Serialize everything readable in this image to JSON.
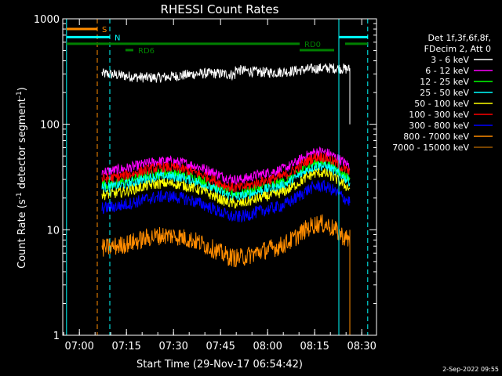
{
  "chart_data": {
    "type": "line",
    "title": "RHESSI Count Rates",
    "xlabel": "Start Time (29-Nov-17 06:54:42)",
    "ylabel_parts": [
      "Count Rate (s",
      "-1",
      " detector segment",
      "-1",
      ")"
    ],
    "yscale": "log",
    "ylim": [
      1,
      1000
    ],
    "xlim_minutes": [
      0,
      100
    ],
    "y_ticks": [
      {
        "value": 1,
        "label": "1"
      },
      {
        "value": 10,
        "label": "10"
      },
      {
        "value": 100,
        "label": "100"
      },
      {
        "value": 1000,
        "label": "1000"
      }
    ],
    "x_ticks": [
      {
        "minute": 5.3,
        "label": "07:00"
      },
      {
        "minute": 20.3,
        "label": "07:15"
      },
      {
        "minute": 35.3,
        "label": "07:30"
      },
      {
        "minute": 50.3,
        "label": "07:45"
      },
      {
        "minute": 65.3,
        "label": "08:00"
      },
      {
        "minute": 80.3,
        "label": "08:15"
      },
      {
        "minute": 95.3,
        "label": "08:30"
      }
    ],
    "legend_header": [
      "Det 1f,3f,6f,8f,",
      "FDecim 2, Att 0"
    ],
    "series": [
      {
        "name": "3 - 6 keV",
        "color": "#ffffff",
        "base": 290,
        "amp": 0.05,
        "noise": 0.05,
        "flat": true
      },
      {
        "name": "6 - 12 keV",
        "color": "#ff00ff",
        "base": 40,
        "amp": 0.18,
        "noise": 0.05
      },
      {
        "name": "12 - 25 keV",
        "color": "#00ff00",
        "base": 30,
        "amp": 0.2,
        "noise": 0.05
      },
      {
        "name": "25 - 50 keV",
        "color": "#00ffff",
        "base": 28,
        "amp": 0.2,
        "noise": 0.05
      },
      {
        "name": "50 - 100 keV",
        "color": "#ffff00",
        "base": 24,
        "amp": 0.2,
        "noise": 0.05
      },
      {
        "name": "100 - 300 keV",
        "color": "#ff0000",
        "base": 34,
        "amp": 0.2,
        "noise": 0.05
      },
      {
        "name": "300 - 800 keV",
        "color": "#0000ff",
        "base": 18,
        "amp": 0.2,
        "noise": 0.06
      },
      {
        "name": "800 - 7000 keV",
        "color": "#ff8c00",
        "base": 7.5,
        "amp": 0.22,
        "noise": 0.09
      },
      {
        "name": "7000 - 15000 keV",
        "color": "#a05a00",
        "base": 0,
        "amp": 0,
        "noise": 0,
        "hidden": true
      }
    ],
    "data_start_minute": 12.5,
    "data_end_minute": 91.5,
    "vertical_lines": [
      {
        "minute": 1.2,
        "color": "#00ffff",
        "style": "solid"
      },
      {
        "minute": 11.0,
        "color": "#ff8c00",
        "style": "dashed"
      },
      {
        "minute": 15.0,
        "color": "#00ffff",
        "style": "dashed"
      },
      {
        "minute": 88.0,
        "color": "#00ffff",
        "style": "solid"
      },
      {
        "minute": 97.2,
        "color": "#00ffff",
        "style": "dashed"
      }
    ],
    "flag_bars": [
      {
        "label": "S",
        "color": "#ff8c00",
        "y": 800,
        "x0": 1.2,
        "x1": 11.0
      },
      {
        "label": "N",
        "color": "#00ffff",
        "y": 670,
        "x0": 1.2,
        "x1": 15.0
      },
      {
        "label": "",
        "color": "#00ffff",
        "y": 670,
        "x0": 88.0,
        "x1": 97.2
      },
      {
        "label": "RD0",
        "color": "#008000",
        "y": 580,
        "x0": 1.2,
        "x1": 75.5
      },
      {
        "label": "",
        "color": "#008000",
        "y": 580,
        "x0": 90.0,
        "x1": 97.2
      },
      {
        "label": "RD6",
        "color": "#008000",
        "y": 505,
        "x0": 20.0,
        "x1": 22.5
      },
      {
        "label": "",
        "color": "#008000",
        "y": 505,
        "x0": 75.5,
        "x1": 86.5
      }
    ],
    "timestamp": "2-Sep-2022 09:55"
  }
}
